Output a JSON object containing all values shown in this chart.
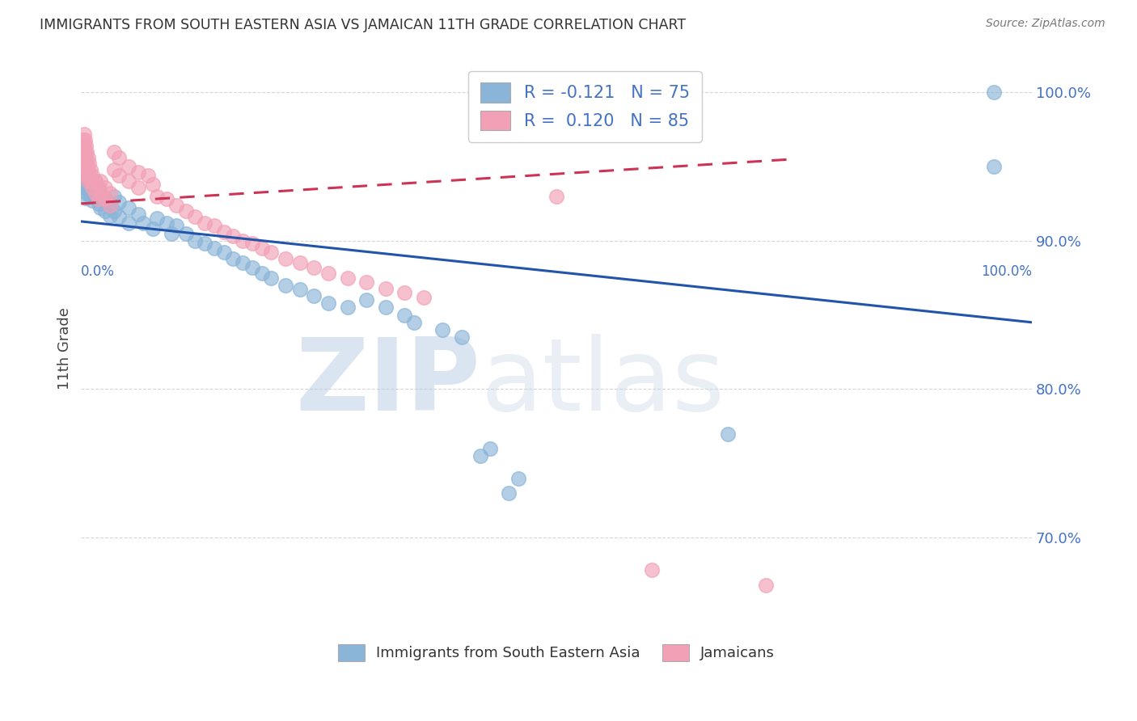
{
  "title": "IMMIGRANTS FROM SOUTH EASTERN ASIA VS JAMAICAN 11TH GRADE CORRELATION CHART",
  "source": "Source: ZipAtlas.com",
  "ylabel": "11th Grade",
  "legend_blue_label": "Immigrants from South Eastern Asia",
  "legend_pink_label": "Jamaicans",
  "blue_color": "#8ab4d8",
  "pink_color": "#f2a0b5",
  "blue_line_color": "#2255aa",
  "pink_line_color": "#cc3355",
  "background_color": "#ffffff",
  "grid_color": "#cccccc",
  "title_color": "#333333",
  "source_color": "#777777",
  "axis_label_color": "#4472c4",
  "blue_scatter": [
    [
      0.002,
      0.952
    ],
    [
      0.002,
      0.948
    ],
    [
      0.002,
      0.944
    ],
    [
      0.002,
      0.94
    ],
    [
      0.003,
      0.956
    ],
    [
      0.003,
      0.95
    ],
    [
      0.003,
      0.944
    ],
    [
      0.003,
      0.938
    ],
    [
      0.004,
      0.958
    ],
    [
      0.004,
      0.95
    ],
    [
      0.004,
      0.943
    ],
    [
      0.004,
      0.936
    ],
    [
      0.005,
      0.952
    ],
    [
      0.005,
      0.944
    ],
    [
      0.005,
      0.936
    ],
    [
      0.005,
      0.929
    ],
    [
      0.006,
      0.948
    ],
    [
      0.006,
      0.94
    ],
    [
      0.006,
      0.932
    ],
    [
      0.007,
      0.945
    ],
    [
      0.007,
      0.937
    ],
    [
      0.008,
      0.942
    ],
    [
      0.008,
      0.934
    ],
    [
      0.01,
      0.938
    ],
    [
      0.01,
      0.93
    ],
    [
      0.012,
      0.935
    ],
    [
      0.012,
      0.927
    ],
    [
      0.015,
      0.94
    ],
    [
      0.015,
      0.93
    ],
    [
      0.018,
      0.935
    ],
    [
      0.018,
      0.925
    ],
    [
      0.02,
      0.932
    ],
    [
      0.02,
      0.922
    ],
    [
      0.025,
      0.928
    ],
    [
      0.025,
      0.92
    ],
    [
      0.03,
      0.925
    ],
    [
      0.03,
      0.917
    ],
    [
      0.035,
      0.93
    ],
    [
      0.035,
      0.92
    ],
    [
      0.04,
      0.926
    ],
    [
      0.04,
      0.916
    ],
    [
      0.05,
      0.922
    ],
    [
      0.05,
      0.912
    ],
    [
      0.06,
      0.918
    ],
    [
      0.065,
      0.912
    ],
    [
      0.075,
      0.908
    ],
    [
      0.08,
      0.915
    ],
    [
      0.09,
      0.912
    ],
    [
      0.095,
      0.905
    ],
    [
      0.1,
      0.91
    ],
    [
      0.11,
      0.905
    ],
    [
      0.12,
      0.9
    ],
    [
      0.13,
      0.898
    ],
    [
      0.14,
      0.895
    ],
    [
      0.15,
      0.892
    ],
    [
      0.16,
      0.888
    ],
    [
      0.17,
      0.885
    ],
    [
      0.18,
      0.882
    ],
    [
      0.19,
      0.878
    ],
    [
      0.2,
      0.875
    ],
    [
      0.215,
      0.87
    ],
    [
      0.23,
      0.867
    ],
    [
      0.245,
      0.863
    ],
    [
      0.26,
      0.858
    ],
    [
      0.28,
      0.855
    ],
    [
      0.3,
      0.86
    ],
    [
      0.32,
      0.855
    ],
    [
      0.34,
      0.85
    ],
    [
      0.35,
      0.845
    ],
    [
      0.38,
      0.84
    ],
    [
      0.4,
      0.835
    ],
    [
      0.42,
      0.755
    ],
    [
      0.43,
      0.76
    ],
    [
      0.45,
      0.73
    ],
    [
      0.46,
      0.74
    ],
    [
      0.68,
      0.77
    ],
    [
      0.96,
      1.0
    ],
    [
      0.96,
      0.95
    ]
  ],
  "pink_scatter": [
    [
      0.002,
      0.968
    ],
    [
      0.002,
      0.962
    ],
    [
      0.002,
      0.956
    ],
    [
      0.002,
      0.95
    ],
    [
      0.003,
      0.972
    ],
    [
      0.003,
      0.964
    ],
    [
      0.003,
      0.956
    ],
    [
      0.003,
      0.948
    ],
    [
      0.004,
      0.968
    ],
    [
      0.004,
      0.96
    ],
    [
      0.004,
      0.952
    ],
    [
      0.005,
      0.964
    ],
    [
      0.005,
      0.956
    ],
    [
      0.005,
      0.948
    ],
    [
      0.006,
      0.96
    ],
    [
      0.006,
      0.952
    ],
    [
      0.006,
      0.944
    ],
    [
      0.007,
      0.956
    ],
    [
      0.007,
      0.948
    ],
    [
      0.007,
      0.94
    ],
    [
      0.008,
      0.952
    ],
    [
      0.008,
      0.944
    ],
    [
      0.01,
      0.948
    ],
    [
      0.01,
      0.94
    ],
    [
      0.012,
      0.944
    ],
    [
      0.012,
      0.936
    ],
    [
      0.015,
      0.94
    ],
    [
      0.015,
      0.932
    ],
    [
      0.018,
      0.936
    ],
    [
      0.018,
      0.928
    ],
    [
      0.02,
      0.94
    ],
    [
      0.02,
      0.932
    ],
    [
      0.025,
      0.936
    ],
    [
      0.025,
      0.928
    ],
    [
      0.03,
      0.932
    ],
    [
      0.03,
      0.924
    ],
    [
      0.035,
      0.96
    ],
    [
      0.035,
      0.948
    ],
    [
      0.04,
      0.956
    ],
    [
      0.04,
      0.944
    ],
    [
      0.05,
      0.95
    ],
    [
      0.05,
      0.94
    ],
    [
      0.06,
      0.946
    ],
    [
      0.06,
      0.936
    ],
    [
      0.07,
      0.944
    ],
    [
      0.075,
      0.938
    ],
    [
      0.08,
      0.93
    ],
    [
      0.09,
      0.928
    ],
    [
      0.1,
      0.924
    ],
    [
      0.11,
      0.92
    ],
    [
      0.12,
      0.916
    ],
    [
      0.13,
      0.912
    ],
    [
      0.14,
      0.91
    ],
    [
      0.15,
      0.906
    ],
    [
      0.16,
      0.903
    ],
    [
      0.17,
      0.9
    ],
    [
      0.18,
      0.898
    ],
    [
      0.19,
      0.895
    ],
    [
      0.2,
      0.892
    ],
    [
      0.215,
      0.888
    ],
    [
      0.23,
      0.885
    ],
    [
      0.245,
      0.882
    ],
    [
      0.26,
      0.878
    ],
    [
      0.28,
      0.875
    ],
    [
      0.3,
      0.872
    ],
    [
      0.32,
      0.868
    ],
    [
      0.34,
      0.865
    ],
    [
      0.36,
      0.862
    ],
    [
      0.5,
      0.93
    ],
    [
      0.6,
      0.678
    ],
    [
      0.72,
      0.668
    ]
  ],
  "blue_trend_x": [
    0.0,
    1.0
  ],
  "blue_trend_y": [
    0.913,
    0.845
  ],
  "pink_trend_x": [
    0.0,
    0.75
  ],
  "pink_trend_y": [
    0.925,
    0.955
  ],
  "watermark_zip": "ZIP",
  "watermark_atlas": "atlas",
  "xlim": [
    0.0,
    1.0
  ],
  "ylim": [
    0.635,
    1.02
  ],
  "yticks": [
    0.7,
    0.8,
    0.9,
    1.0
  ],
  "ytick_labels": [
    "70.0%",
    "80.0%",
    "90.0%",
    "100.0%"
  ]
}
